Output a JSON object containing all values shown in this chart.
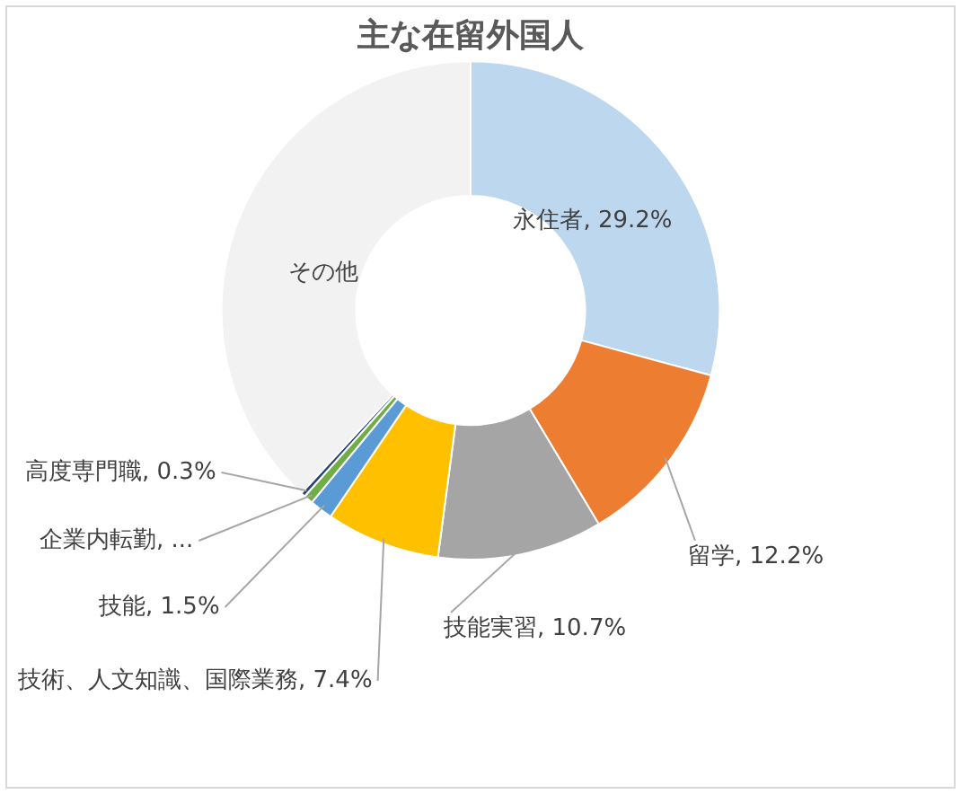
{
  "chart_data": {
    "type": "donut",
    "title": "主な在留外国人",
    "categories": [
      "永住者",
      "留学",
      "技能実習",
      "技術、人文知識、国際業務",
      "技能",
      "企業内転勤",
      "高度専門職",
      "その他"
    ],
    "values": [
      29.2,
      12.2,
      10.7,
      7.4,
      1.5,
      0.6,
      0.3,
      38.1
    ],
    "value_labels": [
      "29.2%",
      "12.2%",
      "10.7%",
      "7.4%",
      "1.5%",
      "...",
      "0.3%",
      null
    ],
    "colors": [
      "#bdd7ee",
      "#ed7d31",
      "#a5a5a5",
      "#ffc000",
      "#5b9bd5",
      "#70ad47",
      "#264478",
      "#f2f2f2"
    ],
    "legend": false
  }
}
